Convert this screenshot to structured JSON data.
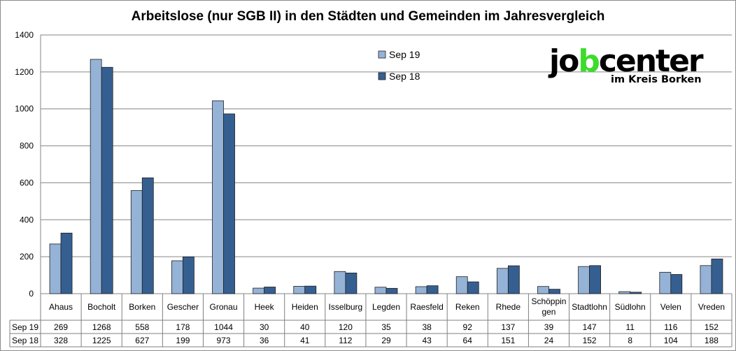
{
  "chart_data": {
    "type": "bar",
    "title": "Arbeitslose (nur SGB II) in den Städten und Gemeinden im Jahresvergleich",
    "xlabel": "",
    "ylabel": "",
    "ylim": [
      0,
      1400
    ],
    "yticks": [
      0,
      200,
      400,
      600,
      800,
      1000,
      1200,
      1400
    ],
    "grid": true,
    "legend_position": "top-center",
    "categories": [
      "Ahaus",
      "Bocholt",
      "Borken",
      "Gescher",
      "Gronau",
      "Heek",
      "Heiden",
      "Isselburg",
      "Legden",
      "Raesfeld",
      "Reken",
      "Rhede",
      "Schöppingen",
      "Stadtlohn",
      "Südlohn",
      "Velen",
      "Vreden"
    ],
    "category_display": [
      "Ahaus",
      "Bocholt",
      "Borken",
      "Gescher",
      "Gronau",
      "Heek",
      "Heiden",
      "Isselburg",
      "Legden",
      "Raesfeld",
      "Reken",
      "Rhede",
      "Schöppin|gen",
      "Stadtlohn",
      "Südlohn",
      "Velen",
      "Vreden"
    ],
    "series": [
      {
        "name": "Sep 19",
        "color": "#95b3d7",
        "values": [
          269,
          1268,
          558,
          178,
          1044,
          30,
          40,
          120,
          35,
          38,
          92,
          137,
          39,
          147,
          11,
          116,
          152
        ]
      },
      {
        "name": "Sep 18",
        "color": "#365f91",
        "values": [
          328,
          1225,
          627,
          199,
          973,
          36,
          41,
          112,
          29,
          43,
          64,
          151,
          24,
          152,
          8,
          104,
          188
        ]
      }
    ],
    "data_table": true
  },
  "logo": {
    "text_job_1": "jo",
    "text_job_2": "b",
    "text_job_3": "center",
    "subtext": "im Kreis Borken",
    "green": "#3ddc2b"
  }
}
